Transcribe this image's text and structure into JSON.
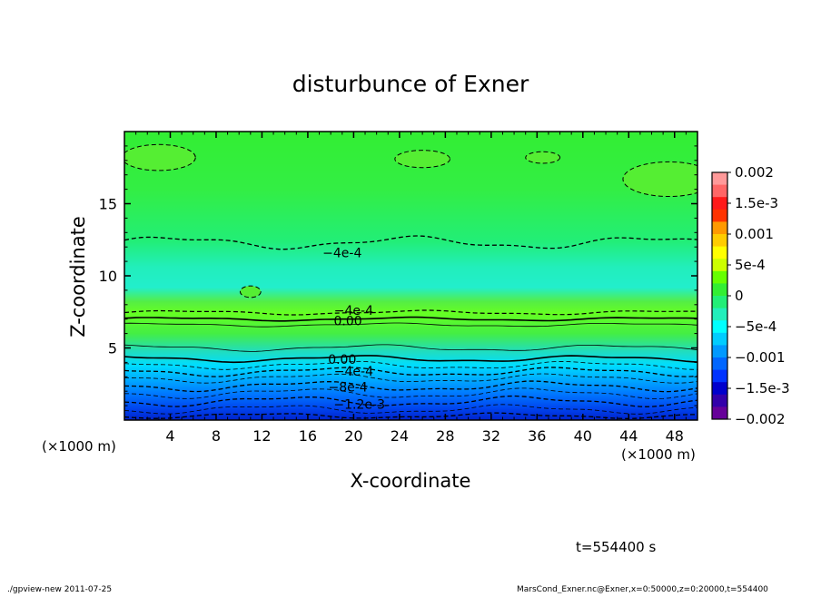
{
  "chart_data": {
    "type": "heatmap",
    "title": "disturbunce of Exner",
    "xlabel": "X-coordinate",
    "ylabel": "Z-coordinate",
    "x_unit": "(×1000 m)",
    "y_unit": "(×1000 m)",
    "xlim": [
      0,
      50
    ],
    "ylim": [
      0,
      20
    ],
    "x_ticks": [
      4,
      8,
      12,
      16,
      20,
      24,
      28,
      32,
      36,
      40,
      44,
      48
    ],
    "y_ticks": [
      5,
      10,
      15
    ],
    "colorbar": {
      "labels": [
        "0.002",
        "1.5e-3",
        "0.001",
        "5e-4",
        "0",
        "−5e-4",
        "−0.001",
        "−1.5e-3",
        "−0.002"
      ],
      "values": [
        0.002,
        0.0015,
        0.001,
        0.0005,
        0,
        -0.0005,
        -0.001,
        -0.0015,
        -0.002
      ],
      "colors": [
        "#ff9999",
        "#ff6666",
        "#ff1a1a",
        "#ff3300",
        "#ff9900",
        "#ffcc00",
        "#ffff00",
        "#ccff00",
        "#66ff00",
        "#33ee33",
        "#22ee77",
        "#22eebb",
        "#00ffff",
        "#00ccff",
        "#0099ff",
        "#0066ff",
        "#0033ff",
        "#0000cc",
        "#3300aa",
        "#660099"
      ]
    },
    "contour_labels": [
      {
        "text": "−4e-4",
        "x": 19,
        "z": 11.6
      },
      {
        "text": "−4e-4",
        "x": 20,
        "z": 7.6
      },
      {
        "text": "0.00",
        "x": 19.5,
        "z": 6.9
      },
      {
        "text": "0.00",
        "x": 19,
        "z": 4.2
      },
      {
        "text": "−4e-4",
        "x": 20,
        "z": 3.4
      },
      {
        "text": "−8e-4",
        "x": 19.5,
        "z": 2.3
      },
      {
        "text": "−1.2e-3",
        "x": 20.5,
        "z": 1.1
      }
    ],
    "time_label": "t=554400 s"
  },
  "footer": {
    "left": "./gpview-new   2011-07-25",
    "right": "MarsCond_Exner.nc@Exner,x=0:50000,z=0:20000,t=554400"
  }
}
